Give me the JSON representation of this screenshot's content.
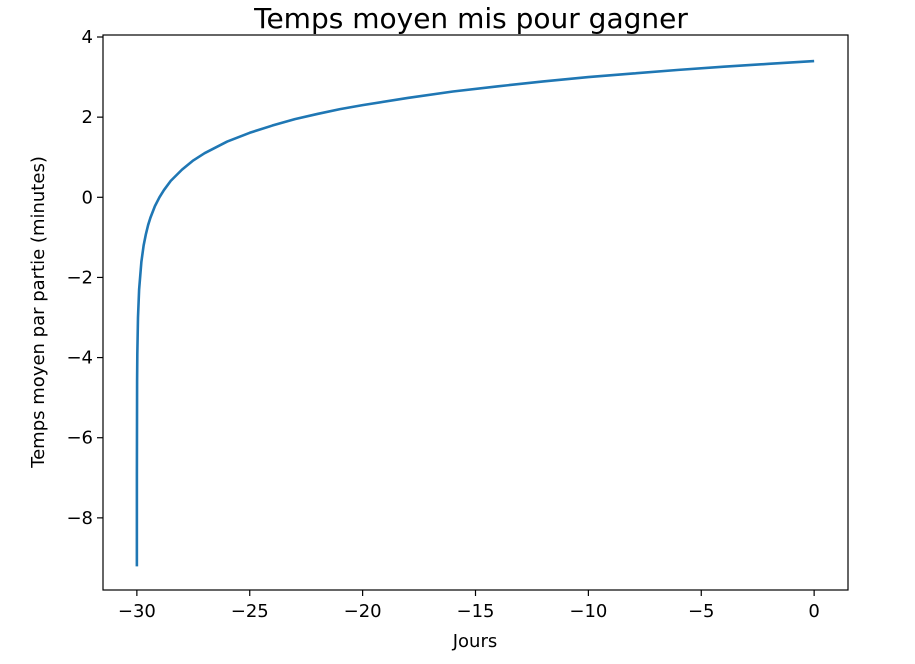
{
  "chart_data": {
    "type": "line",
    "title": "Temps moyen mis pour gagner",
    "xlabel": "Jours",
    "ylabel": "Temps moyen par partie (minutes)",
    "xlim": [
      -31.5,
      1.5
    ],
    "ylim": [
      -9.8,
      4.05
    ],
    "xticks": [
      -30,
      -25,
      -20,
      -15,
      -10,
      -5,
      0
    ],
    "xtick_labels": [
      "−30",
      "−25",
      "−20",
      "−15",
      "−10",
      "−5",
      "0"
    ],
    "yticks": [
      -8,
      -6,
      -4,
      -2,
      0,
      2,
      4
    ],
    "ytick_labels": [
      "−8",
      "−6",
      "−4",
      "−2",
      "0",
      "2",
      "4"
    ],
    "grid": false,
    "series": [
      {
        "color": "#1f77b4",
        "x": [
          -29.9999,
          -29.999,
          -29.99,
          -29.98,
          -29.95,
          -29.9,
          -29.8,
          -29.7,
          -29.6,
          -29.5,
          -29.4,
          -29.2,
          -29,
          -28.8,
          -28.5,
          -28,
          -27.5,
          -27,
          -26,
          -25,
          -24,
          -23,
          -22,
          -21,
          -20,
          -18,
          -16,
          -14,
          -12,
          -10,
          -8,
          -6,
          -4,
          -2,
          0
        ],
        "y": [
          -9.21,
          -6.91,
          -4.6,
          -3.91,
          -3.0,
          -2.3,
          -1.61,
          -1.2,
          -0.92,
          -0.69,
          -0.51,
          -0.22,
          0.0,
          0.18,
          0.41,
          0.69,
          0.92,
          1.1,
          1.39,
          1.61,
          1.79,
          1.95,
          2.08,
          2.2,
          2.3,
          2.48,
          2.64,
          2.77,
          2.89,
          3.0,
          3.09,
          3.18,
          3.26,
          3.33,
          3.4
        ]
      }
    ]
  }
}
